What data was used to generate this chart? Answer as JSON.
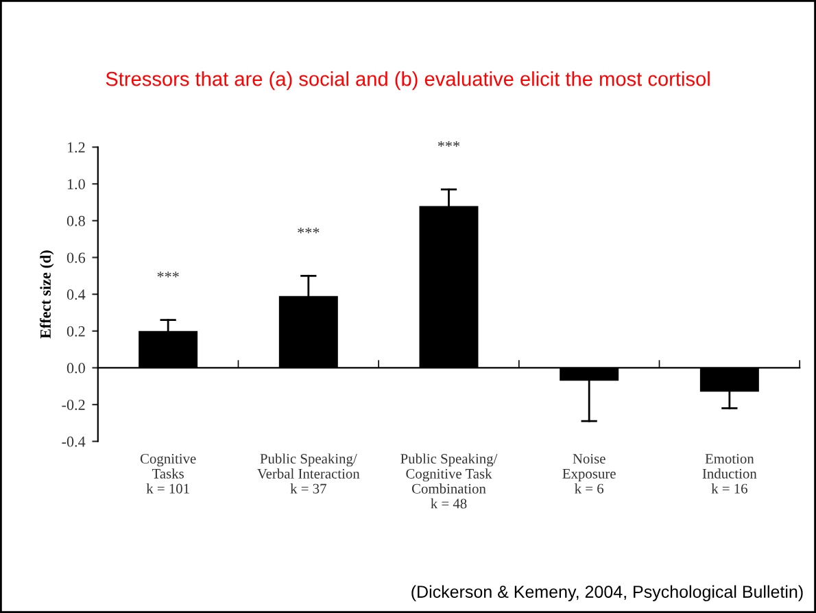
{
  "chart_data": {
    "type": "bar",
    "title": "Stressors that are (a) social and (b) evaluative elicit the most cortisol",
    "ylabel": "Effect size (d)",
    "categories": [
      "Cognitive\nTasks\nk = 101",
      "Public Speaking/\nVerbal Interaction\nk = 37",
      "Public Speaking/\nCognitive Task\nCombination\nk = 48",
      "Noise\nExposure\nk = 6",
      "Emotion\nInduction\nk = 16"
    ],
    "values": [
      0.2,
      0.39,
      0.88,
      -0.07,
      -0.13
    ],
    "errors": [
      [
        0.2,
        0.26
      ],
      [
        0.39,
        0.5
      ],
      [
        0.88,
        0.97
      ],
      [
        -0.29,
        -0.07
      ],
      [
        -0.22,
        -0.13
      ]
    ],
    "color": "#000000",
    "ylim": [
      -0.4,
      1.2
    ],
    "yticks": [
      {
        "value": -0.4,
        "label": "-0.4"
      },
      {
        "value": -0.2,
        "label": "-0.2"
      },
      {
        "value": 0,
        "label": "0.0"
      },
      {
        "value": 0.2,
        "label": "0.2"
      },
      {
        "value": 0.4,
        "label": "0.4"
      },
      {
        "value": 0.6,
        "label": "0.6"
      },
      {
        "value": 0.8,
        "label": "0.8"
      },
      {
        "value": 1.0,
        "label": "1.0"
      },
      {
        "value": 1.2,
        "label": "1.2"
      }
    ],
    "annotations": [
      "***",
      "***",
      "***",
      "(Dickerson & Kemeny, 2004, Psychological Bulletin)"
    ]
  }
}
